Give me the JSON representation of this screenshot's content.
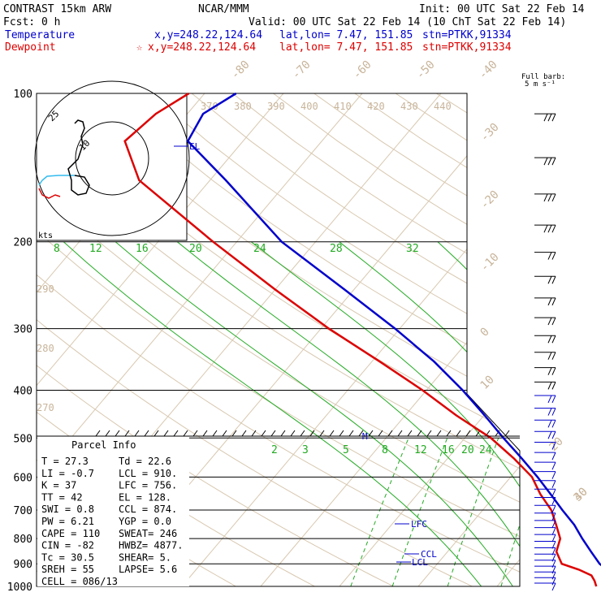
{
  "header": {
    "model": "CONTRAST 15km ARW",
    "center": "NCAR/MMM",
    "init": "Init: 00 UTC Sat 22 Feb 14",
    "fcst": "Fcst:     0 h",
    "valid": "Valid: 00 UTC Sat 22 Feb 14 (10 ChT Sat 22 Feb 14)"
  },
  "legend": {
    "temperature": {
      "label": "Temperature",
      "xy": "x,y=248.22,124.64",
      "latlon": "lat,lon=  7.47, 151.85",
      "stn": "stn=PTKK,91334",
      "color": "#0000cc"
    },
    "dewpoint": {
      "label": "Dewpoint",
      "xy": "x,y=248.22,124.64",
      "latlon": "lat,lon=  7.47, 151.85",
      "stn": "stn=PTKK,91334",
      "color": "#dd0000",
      "marker": "☆"
    }
  },
  "wind_legend": {
    "line1": "Full barb:",
    "line2": "5 m s⁻¹"
  },
  "hodograph": {
    "ring_labels": [
      "25",
      "10"
    ],
    "unit": "kts"
  },
  "parcel_info": {
    "title": "Parcel Info",
    "rows": [
      [
        "T  =     27.3",
        "Td =   22.6"
      ],
      [
        "LI =     -0.7",
        "LCL =  910."
      ],
      [
        "K  =       37",
        "LFC =  756."
      ],
      [
        "TT =       42",
        "EL  =  128."
      ],
      [
        "SWI =     0.8",
        "CCL =  874."
      ],
      [
        "PW =     6.21",
        "YGP =   0.0"
      ],
      [
        "CAPE =    110",
        "SWEAT=  246"
      ],
      [
        "CIN =     -82",
        "HWBZ= 4877."
      ],
      [
        "Tc =     30.5",
        "SHEAR=   5."
      ],
      [
        "SREH =     55",
        "LAPSE=  5.6"
      ],
      [
        "CELL = 086/13",
        ""
      ]
    ]
  },
  "levels": {
    "EL": "EL",
    "LFC": "LFC",
    "CCL": "CCL",
    "LCL": "LCL",
    "M": "M"
  },
  "colors": {
    "temperature": "#0000cc",
    "dewpoint": "#dd0000",
    "isotherm": "#c8b49a",
    "mixing_ratio": "#00aa00",
    "dry_adiabat": "#00aa00"
  },
  "chart_data": {
    "type": "line",
    "pressure_levels": [
      1000,
      900,
      800,
      700,
      600,
      500,
      400,
      300,
      200,
      100
    ],
    "pressure_labels": [
      "1000",
      "900",
      "800",
      "700",
      "600",
      "500",
      "400",
      "300",
      "200",
      "100"
    ],
    "isotherm_labels": [
      "-80",
      "-70",
      "-60",
      "-50",
      "-40",
      "-30",
      "-20",
      "-10",
      "0",
      "10",
      "20",
      "30",
      "40"
    ],
    "theta_labels": [
      "370",
      "380",
      "390",
      "400",
      "410",
      "420",
      "430",
      "440"
    ],
    "theta_left_labels": [
      "290",
      "280",
      "270"
    ],
    "mixing_ratio_labels_top": [
      "8",
      "12",
      "16",
      "20",
      "24",
      "28",
      "32"
    ],
    "mixing_ratio_labels_bottom": [
      "2",
      "3",
      "5",
      "8",
      "12",
      "16",
      "20",
      "24"
    ],
    "temperature": {
      "name": "Temperature",
      "p": [
        1000,
        975,
        950,
        925,
        900,
        850,
        800,
        750,
        700,
        650,
        600,
        550,
        500,
        450,
        400,
        350,
        300,
        250,
        200,
        150,
        125,
        110,
        100
      ],
      "t": [
        27.3,
        25.5,
        23.6,
        22.2,
        20.6,
        18.2,
        15.7,
        13.2,
        10.1,
        6.9,
        3.4,
        -0.6,
        -5.1,
        -9.9,
        -15.4,
        -22.1,
        -30.6,
        -41.2,
        -54.3,
        -68.0,
        -77.0,
        -78.0,
        -76.0
      ]
    },
    "dewpoint": {
      "name": "Dewpoint",
      "p": [
        1000,
        975,
        950,
        925,
        900,
        850,
        800,
        750,
        700,
        650,
        600,
        550,
        500,
        450,
        400,
        350,
        300,
        250,
        200,
        150,
        125,
        110,
        100
      ],
      "td": [
        22.6,
        21.8,
        20.8,
        18.6,
        15.8,
        13.8,
        12.9,
        10.9,
        8.7,
        5.6,
        2.7,
        -1.6,
        -6.7,
        -13.5,
        -20.5,
        -29.0,
        -39.0,
        -50.0,
        -63.0,
        -79.0,
        -85.0,
        -84.0,
        -82.0
      ]
    },
    "winds_unit": "m s-1",
    "xlabel": "",
    "ylabel": "",
    "skew_ref": "isotherms sloped up-right"
  }
}
